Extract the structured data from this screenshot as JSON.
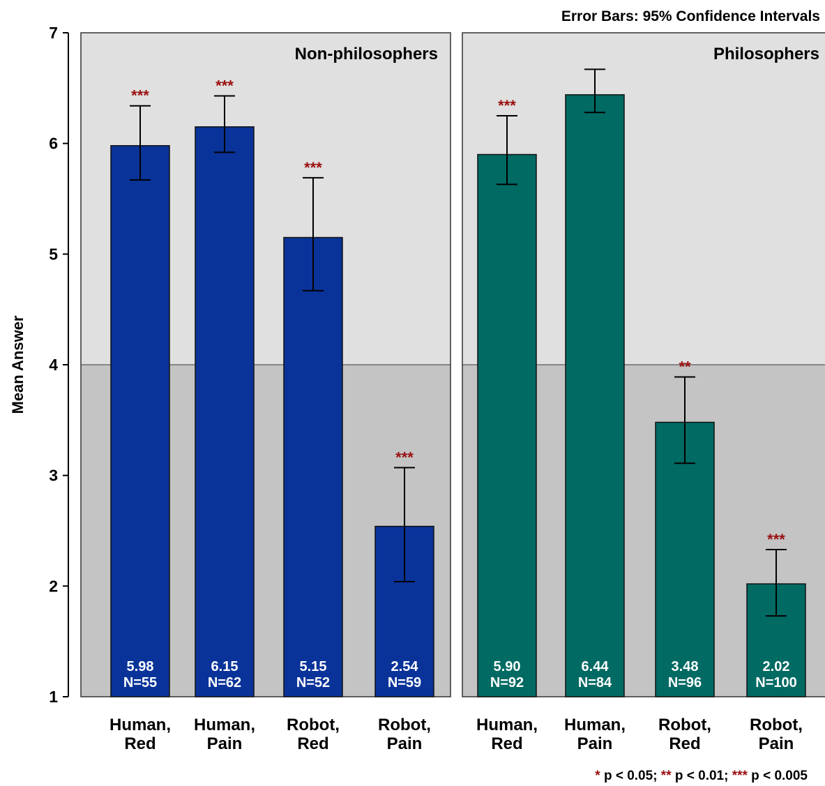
{
  "chart_data": {
    "type": "bar",
    "note_top": "Error Bars: 95% Confidence Intervals",
    "ylabel": "Mean Answer",
    "ylim": [
      1,
      7
    ],
    "yticks": [
      1,
      2,
      3,
      4,
      5,
      6,
      7
    ],
    "reference_line": 4,
    "categories": [
      "Human, Red",
      "Human, Pain",
      "Robot, Red",
      "Robot, Pain"
    ],
    "category_lines": [
      [
        "Human,",
        "Red"
      ],
      [
        "Human,",
        "Pain"
      ],
      [
        "Robot,",
        "Red"
      ],
      [
        "Robot,",
        "Pain"
      ]
    ],
    "panels": [
      {
        "title": "Non-philosophers",
        "color": "#0a3399",
        "values": [
          5.98,
          6.15,
          5.15,
          2.54
        ],
        "value_labels": [
          "5.98",
          "6.15",
          "5.15",
          "2.54"
        ],
        "n_labels": [
          "N=55",
          "N=62",
          "N=52",
          "N=59"
        ],
        "ci_low": [
          5.67,
          5.92,
          4.67,
          2.04
        ],
        "ci_high": [
          6.34,
          6.43,
          5.69,
          3.07
        ],
        "significance": [
          "***",
          "***",
          "***",
          "***"
        ]
      },
      {
        "title": "Philosophers",
        "color": "#006a63",
        "values": [
          5.9,
          6.44,
          3.48,
          2.02
        ],
        "value_labels": [
          "5.90",
          "6.44",
          "3.48",
          "2.02"
        ],
        "n_labels": [
          "N=92",
          "N=84",
          "N=96",
          "N=100"
        ],
        "ci_low": [
          5.63,
          6.28,
          3.11,
          1.73
        ],
        "ci_high": [
          6.25,
          6.67,
          3.89,
          2.33
        ],
        "significance": [
          "***",
          "",
          "**",
          "***"
        ]
      }
    ],
    "legend": [
      {
        "stars": "*",
        "text": "p < 0.05;"
      },
      {
        "stars": "**",
        "text": "p < 0.01;"
      },
      {
        "stars": "***",
        "text": "p < 0.005"
      }
    ],
    "colors": {
      "upper_bg": "#e0e0e0",
      "lower_bg": "#c4c4c4",
      "significance": "#9b0f0f",
      "text": "#000000"
    }
  }
}
